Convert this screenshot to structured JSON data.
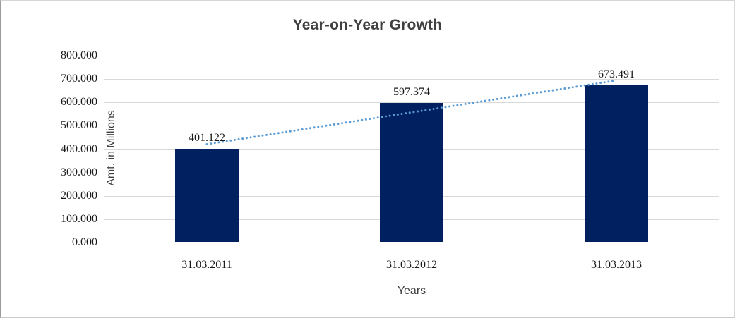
{
  "chart_data": {
    "type": "bar",
    "title": "Year-on-Year Growth",
    "xlabel": "Years",
    "ylabel": "Amt. in Millions",
    "categories": [
      "31.03.2011",
      "31.03.2012",
      "31.03.2013"
    ],
    "values": [
      401.122,
      597.374,
      673.491
    ],
    "data_labels": [
      "401.122",
      "597.374",
      "673.491"
    ],
    "ylim": [
      0,
      800
    ],
    "ytick_step": 100,
    "ytick_labels": [
      "0.000",
      "100.000",
      "200.000",
      "300.000",
      "400.000",
      "500.000",
      "600.000",
      "700.000",
      "800.000"
    ],
    "grid": true,
    "legend_position": "none",
    "bar_color": "#002060",
    "trendline": {
      "type": "linear",
      "style": "dotted",
      "color": "#5b9bd5",
      "start_value": 421,
      "end_value": 694
    }
  },
  "frame": {
    "background": "#ffffff",
    "gridline_color": "#d9d9d9",
    "axis_line_color": "#bfbfbf",
    "title_color": "#404040",
    "tick_color": "#1a1a1a"
  }
}
